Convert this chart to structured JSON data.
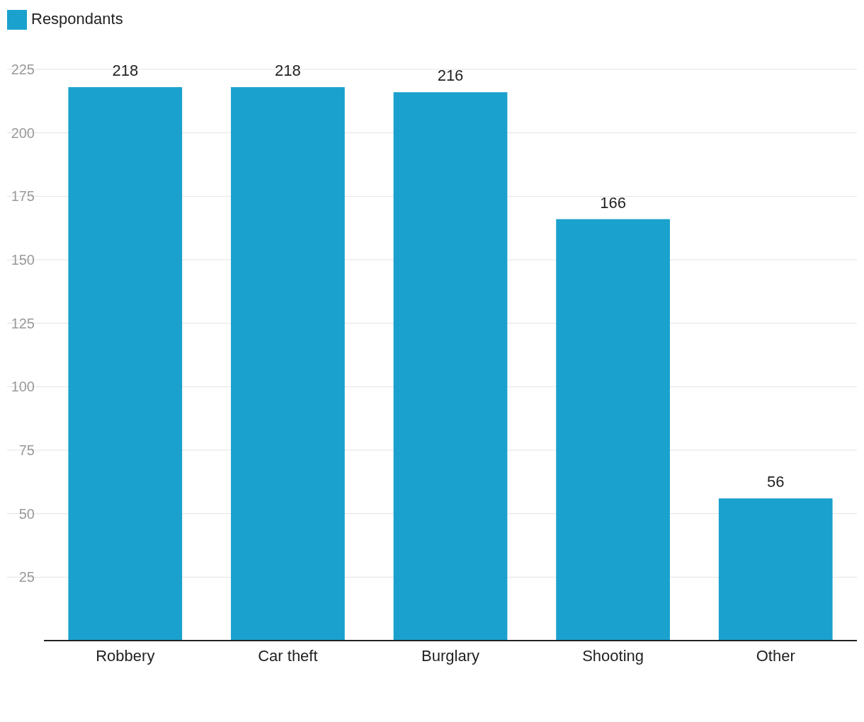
{
  "chart_data": {
    "type": "bar",
    "categories": [
      "Robbery",
      "Car theft",
      "Burglary",
      "Shooting",
      "Other"
    ],
    "series": [
      {
        "name": "Respondants",
        "color": "#1aa1cd",
        "values": [
          218,
          218,
          216,
          166,
          56
        ]
      }
    ],
    "ylim": [
      0,
      225
    ],
    "yticks": [
      25,
      50,
      75,
      100,
      125,
      150,
      175,
      200,
      225
    ],
    "grid": "y",
    "legend": "top left",
    "data_labels": true
  }
}
